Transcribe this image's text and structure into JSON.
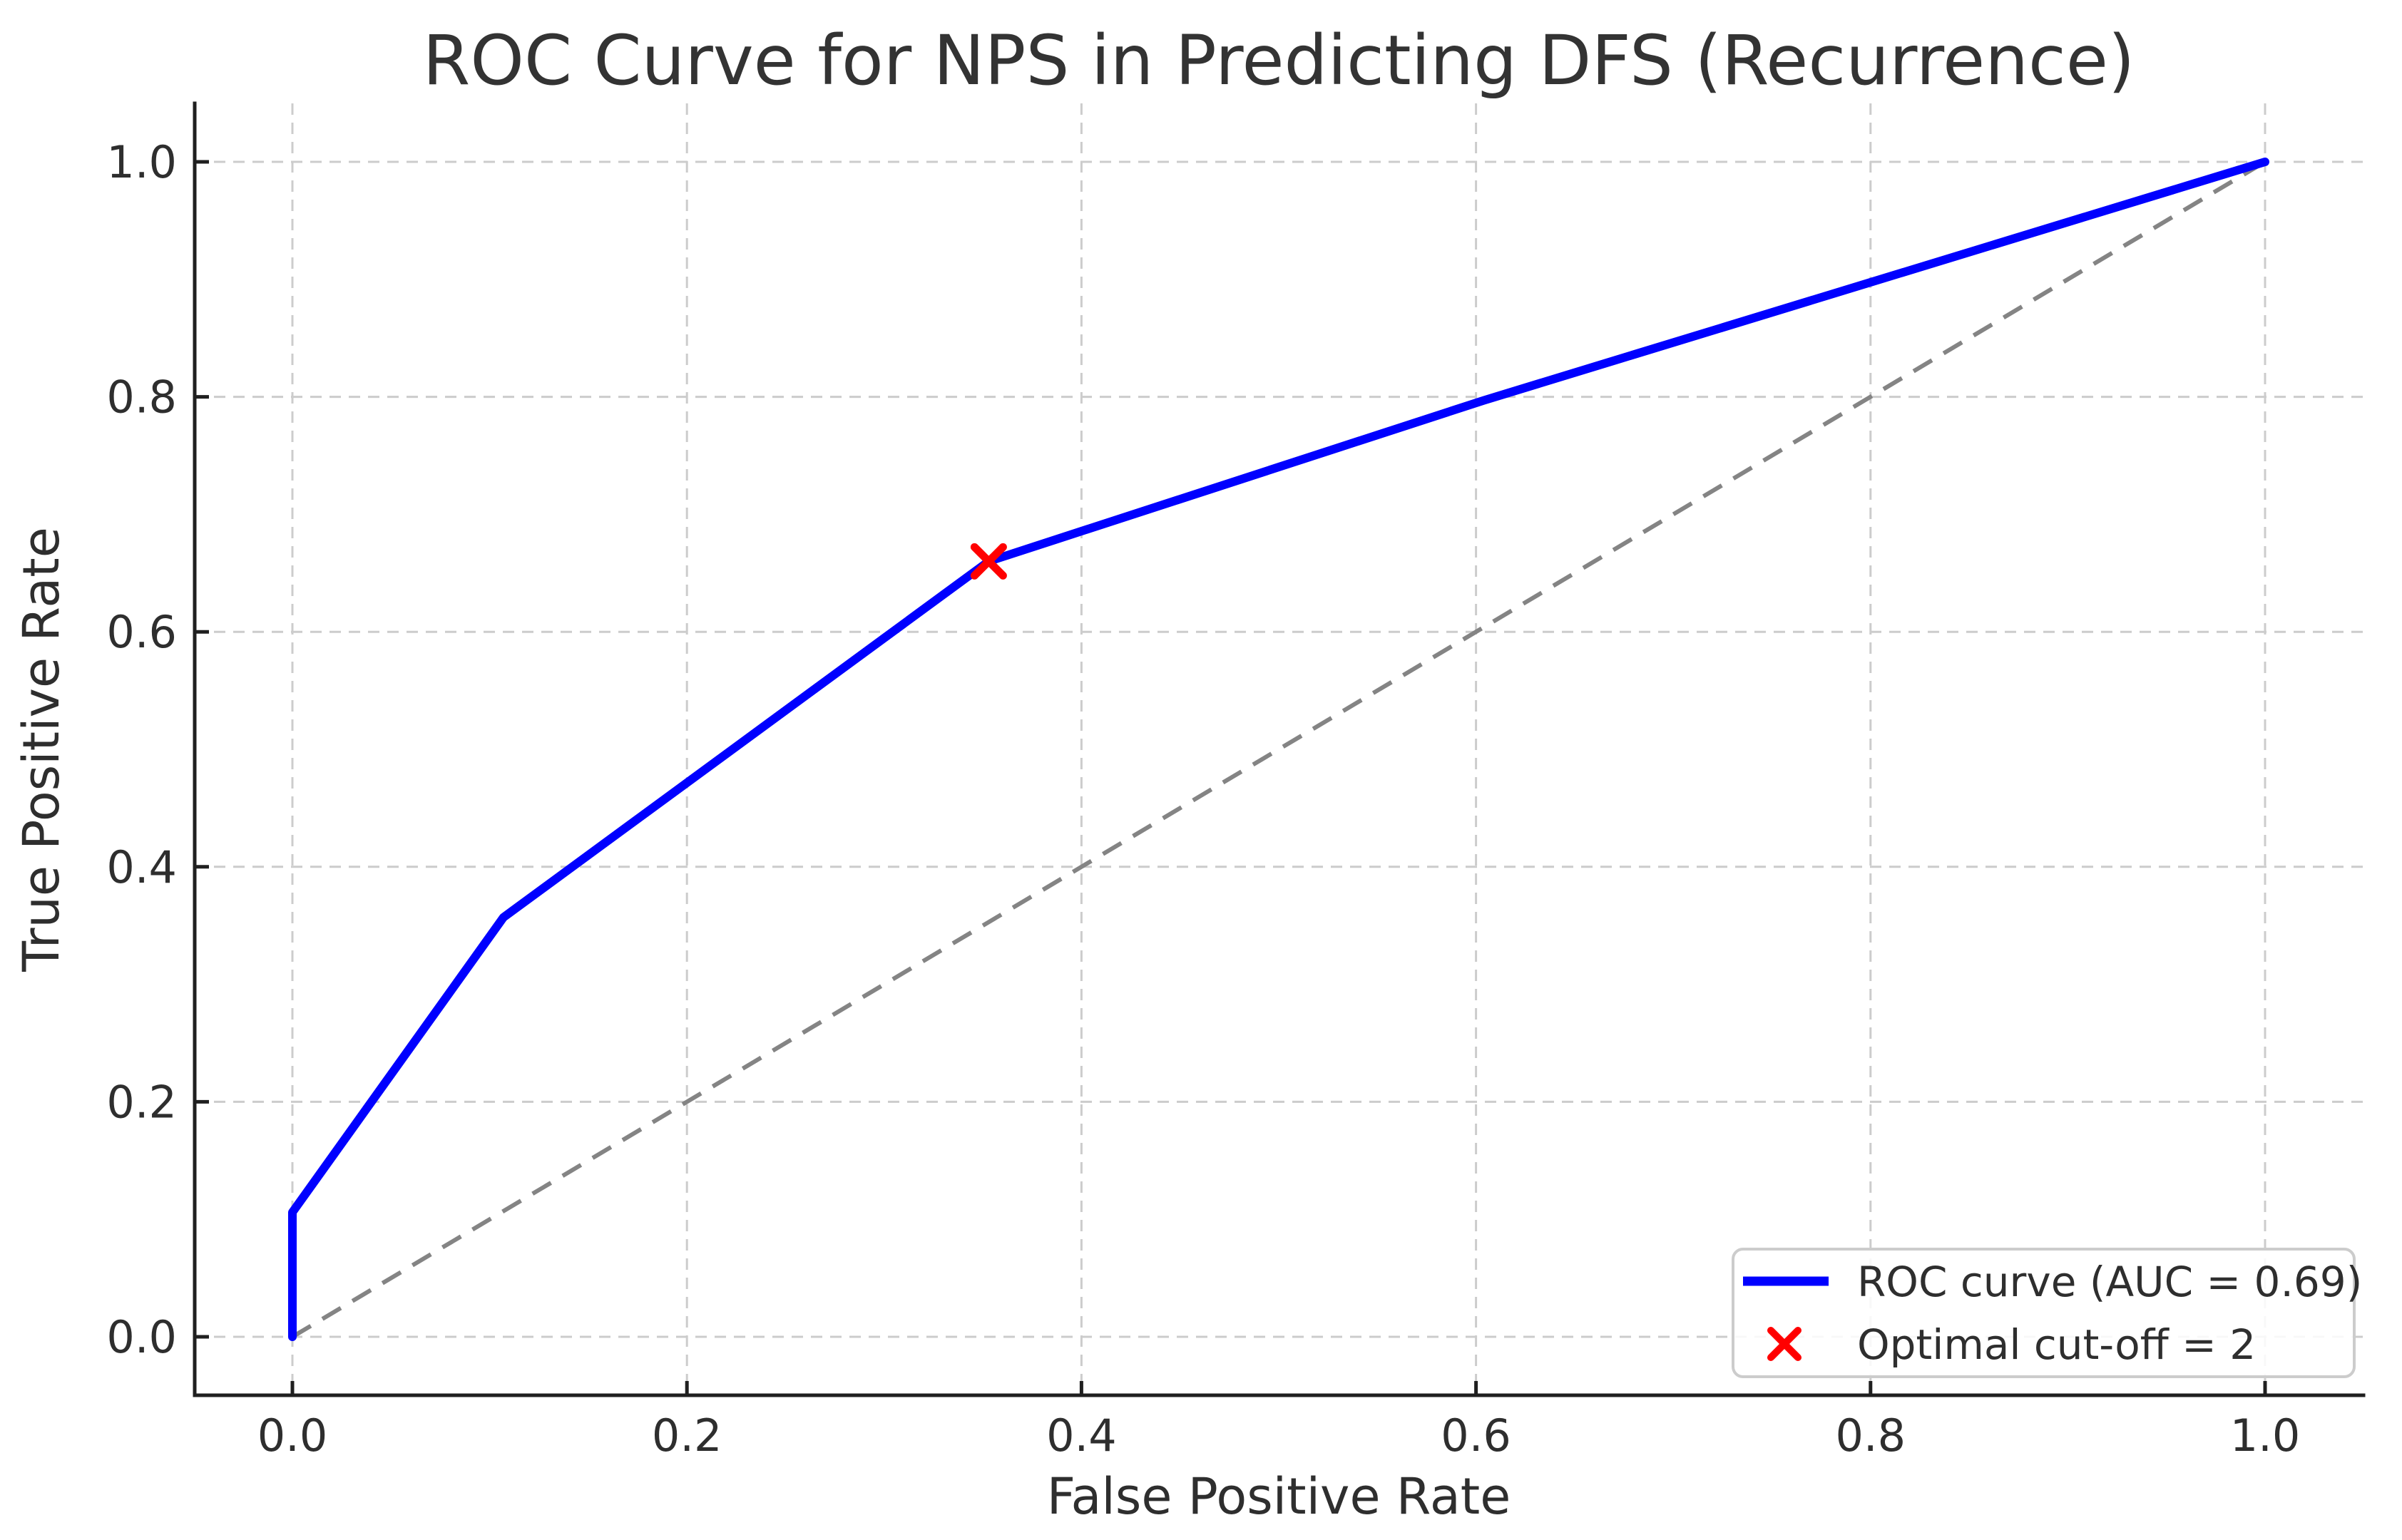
{
  "title": "ROC Curve for NPS in Predicting DFS (Recurrence)",
  "axes": {
    "xlabel": "False Positive Rate",
    "ylabel": "True Positive Rate",
    "x_tick_labels": [
      "0.0",
      "0.2",
      "0.4",
      "0.6",
      "0.8",
      "1.0"
    ],
    "y_tick_labels": [
      "0.0",
      "0.2",
      "0.4",
      "0.6",
      "0.8",
      "1.0"
    ]
  },
  "legend": {
    "items": [
      {
        "swatch": "line",
        "color": "#0000ff",
        "label": "ROC curve (AUC = 0.69)"
      },
      {
        "swatch": "x-marker",
        "color": "#ff0000",
        "label": "Optimal cut-off = 2"
      }
    ]
  },
  "colors": {
    "roc_curve": "#0000ff",
    "optimal_marker": "#ff0000",
    "diagonal": "#848484",
    "grid": "#cccccc",
    "spine": "#1f1f1f",
    "text": "#2e2e2e",
    "legend_border": "#cccccc"
  },
  "chart_data": {
    "type": "line",
    "title": "ROC Curve for NPS in Predicting DFS (Recurrence)",
    "xlabel": "False Positive Rate",
    "ylabel": "True Positive Rate",
    "xlim": [
      -0.05,
      1.05
    ],
    "ylim": [
      -0.05,
      1.05
    ],
    "x_ticks": [
      0.0,
      0.2,
      0.4,
      0.6,
      0.8,
      1.0
    ],
    "y_ticks": [
      0.0,
      0.2,
      0.4,
      0.6,
      0.8,
      1.0
    ],
    "grid": true,
    "grid_style": "dashed",
    "legend_position": "lower right",
    "series": [
      {
        "role": "roc-curve",
        "name": "ROC curve (AUC = 0.69)",
        "type": "line",
        "color": "#0000ff",
        "x": [
          0.0,
          0.0,
          0.107,
          0.353,
          0.604,
          1.0
        ],
        "y": [
          0.0,
          0.106,
          0.357,
          0.66,
          0.797,
          1.0
        ]
      },
      {
        "role": "chance-diagonal",
        "type": "line",
        "style": "dashed",
        "color": "#848484",
        "x": [
          0.0,
          1.0
        ],
        "y": [
          0.0,
          1.0
        ]
      },
      {
        "role": "optimal-cutoff-point",
        "name": "Optimal cut-off = 2",
        "type": "scatter",
        "marker": "x",
        "color": "#ff0000",
        "x": [
          0.353
        ],
        "y": [
          0.66
        ]
      }
    ],
    "auc": 0.69,
    "optimal_cutoff": 2,
    "optimal_point": {
      "fpr": 0.353,
      "tpr": 0.66
    }
  }
}
